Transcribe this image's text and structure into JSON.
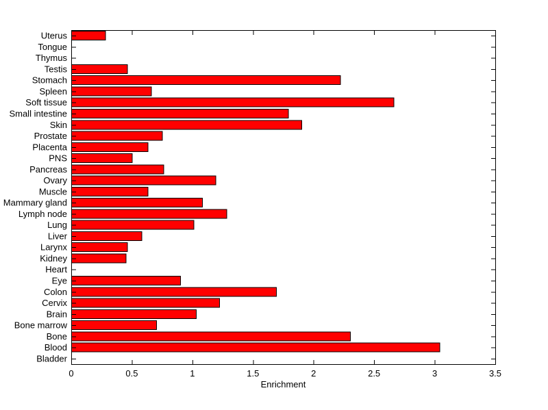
{
  "chart_data": {
    "type": "bar",
    "orientation": "horizontal",
    "title": "",
    "xlabel": "Enrichment",
    "ylabel": "",
    "xlim": [
      0,
      3.5
    ],
    "xticks": [
      0,
      0.5,
      1,
      1.5,
      2,
      2.5,
      3,
      3.5
    ],
    "xtick_labels": [
      "0",
      "0.5",
      "1",
      "1.5",
      "2",
      "2.5",
      "3",
      "3.5"
    ],
    "categories_top_to_bottom": [
      "Uterus",
      "Tongue",
      "Thymus",
      "Testis",
      "Stomach",
      "Spleen",
      "Soft tissue",
      "Small intestine",
      "Skin",
      "Prostate",
      "Placenta",
      "PNS",
      "Pancreas",
      "Ovary",
      "Muscle",
      "Mammary gland",
      "Lymph node",
      "Lung",
      "Liver",
      "Larynx",
      "Kidney",
      "Heart",
      "Eye",
      "Colon",
      "Cervix",
      "Brain",
      "Bone marrow",
      "Bone",
      "Blood",
      "Bladder"
    ],
    "values": [
      0.28,
      0,
      0,
      0.46,
      2.22,
      0.66,
      2.66,
      1.79,
      1.9,
      0.75,
      0.63,
      0.5,
      0.76,
      1.19,
      0.63,
      1.08,
      1.28,
      1.01,
      0.58,
      0.46,
      0.45,
      0,
      0.9,
      1.69,
      1.22,
      1.03,
      0.7,
      2.3,
      3.04,
      0
    ],
    "grid": false,
    "legend": null,
    "colors": {
      "bar_fill": "#ff0000",
      "bar_edge": "#000000",
      "axis": "#000000",
      "text": "#000000",
      "background": "#ffffff"
    }
  }
}
